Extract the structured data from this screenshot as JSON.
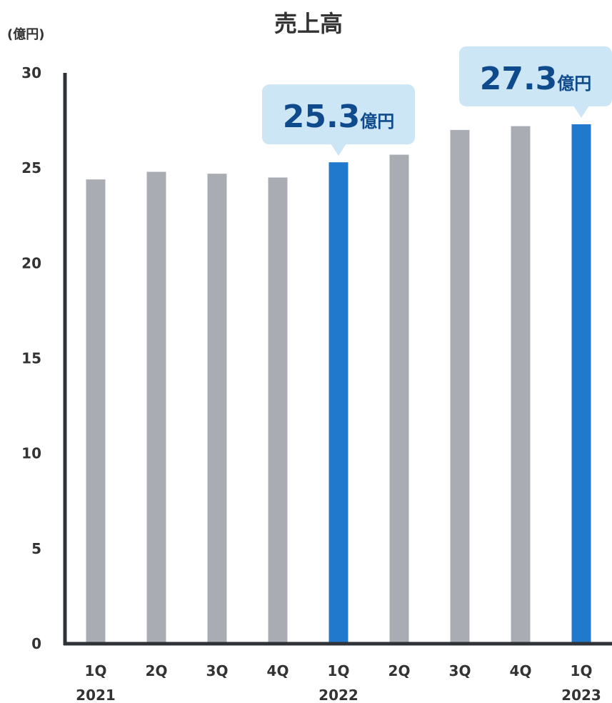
{
  "chart_data": {
    "type": "bar",
    "title": "売上高",
    "unit_label": "(億円)",
    "ylim": [
      0,
      30
    ],
    "yticks": [
      "0",
      "5",
      "10",
      "15",
      "20",
      "25",
      "30"
    ],
    "categories": [
      "1Q",
      "2Q",
      "3Q",
      "4Q",
      "1Q",
      "2Q",
      "3Q",
      "4Q",
      "1Q"
    ],
    "years": [
      {
        "label": "2021",
        "index": 0
      },
      {
        "label": "2022",
        "index": 4
      },
      {
        "label": "2023",
        "index": 8
      }
    ],
    "values": [
      24.4,
      24.8,
      24.7,
      24.5,
      25.3,
      25.7,
      27.0,
      27.2,
      27.3
    ],
    "highlight_indices": [
      4,
      8
    ],
    "callouts": [
      {
        "index": 4,
        "value": "25.3",
        "unit": "億円"
      },
      {
        "index": 8,
        "value": "27.3",
        "unit": "億円"
      }
    ],
    "colors": {
      "bar": "#aaacb3",
      "highlight": "#2079cc",
      "axis": "#2f3237",
      "callout_bg": "#cce6f6",
      "callout_text": "#0f4b8c"
    }
  }
}
